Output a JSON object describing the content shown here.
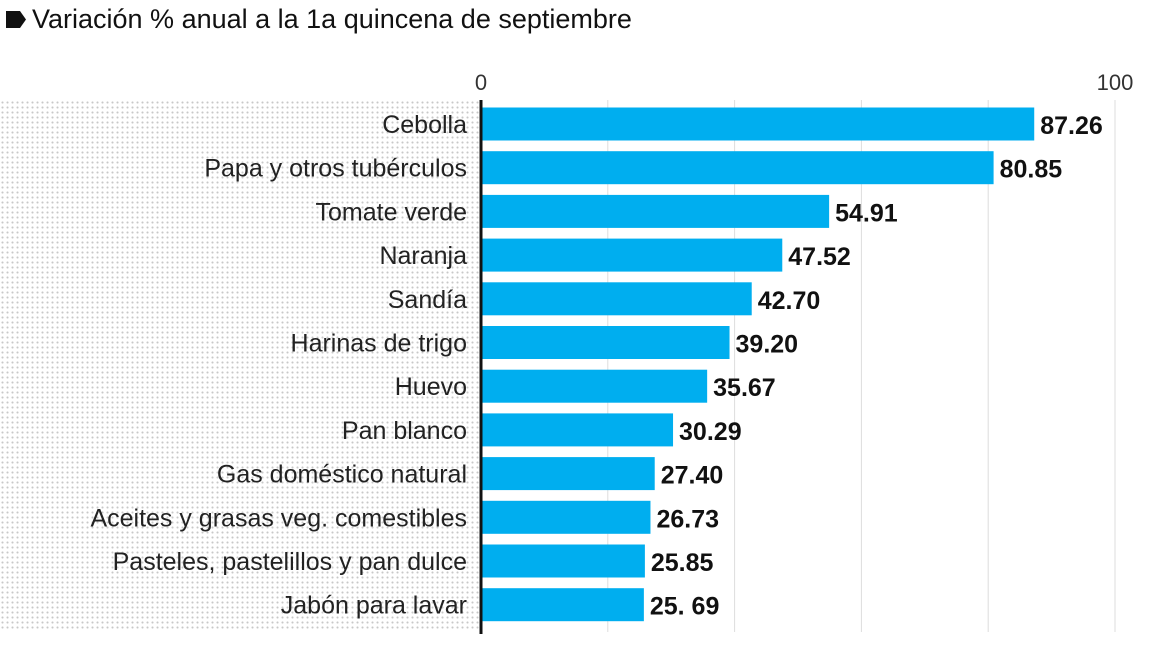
{
  "chart_data": {
    "type": "bar",
    "orientation": "horizontal",
    "title": "Variación % anual a la 1a quincena de septiembre",
    "categories": [
      "Cebolla",
      "Papa y otros tubérculos",
      "Tomate verde",
      "Naranja",
      "Sandía",
      "Harinas de trigo",
      "Huevo",
      "Pan blanco",
      "Gas doméstico natural",
      "Aceites y grasas veg. comestibles",
      "Pasteles, pastelillos y pan dulce",
      "Jabón para lavar"
    ],
    "values": [
      87.26,
      80.85,
      54.91,
      47.52,
      42.7,
      39.2,
      35.67,
      30.29,
      27.4,
      26.73,
      25.85,
      25.69
    ],
    "value_labels": [
      "87.26",
      "80.85",
      "54.91",
      "47.52",
      "42.70",
      "39.20",
      "35.67",
      "30.29",
      "27.40",
      "26.73",
      "25.85",
      "25. 69"
    ],
    "xlim": [
      0,
      100
    ],
    "tick_labels": [
      "0",
      "100"
    ],
    "gridlines": [
      20,
      40,
      60,
      80,
      100
    ],
    "grid": true,
    "bar_color": "#00aeef"
  }
}
